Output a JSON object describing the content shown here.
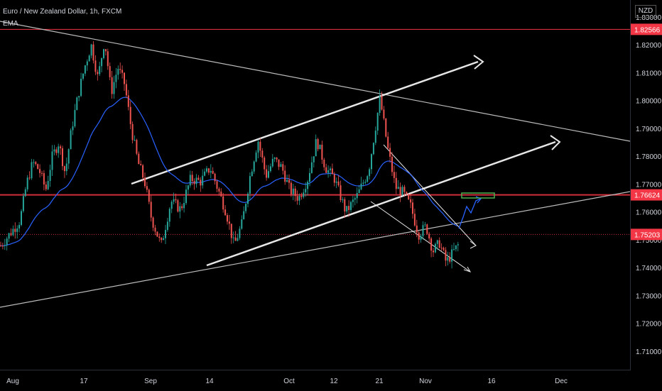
{
  "header": {
    "title": "Euro / New Zealand Dollar, 1h, FXCM",
    "indicator": "EMA"
  },
  "price_axis": {
    "currency": "NZD",
    "ticks": [
      "1.83000",
      "1.82000",
      "1.81000",
      "1.80000",
      "1.79000",
      "1.78000",
      "1.77000",
      "1.76000",
      "1.75000",
      "1.74000",
      "1.73000",
      "1.72000",
      "1.71000"
    ],
    "badges": [
      {
        "value": "1.82566",
        "color": "#f23645"
      },
      {
        "value": "1.76624",
        "color": "#f23645"
      },
      {
        "value": "1.75203",
        "color": "#f23645"
      }
    ]
  },
  "time_axis": {
    "labels": [
      "Aug",
      "17",
      "Sep",
      "14",
      "Oct",
      "12",
      "21",
      "Nov",
      "16",
      "Dec"
    ]
  },
  "colors": {
    "background": "#000000",
    "up": "#26a69a",
    "down": "#ef5350",
    "ema": "#2962ff",
    "resistance": "#f23645",
    "drawing": "#e6e6e6",
    "target_box": "#4caf50"
  },
  "chart_data": {
    "type": "candlestick",
    "symbol": "EURNZD",
    "interval": "1h",
    "source": "FXCM",
    "ylim": [
      1.7032,
      1.8362
    ],
    "grid": false,
    "horizontal_levels": [
      1.82566,
      1.76624
    ],
    "current_price": 1.75203,
    "price_path": [
      [
        "Aug",
        1.748
      ],
      [
        "",
        1.757
      ],
      [
        "",
        1.77
      ],
      [
        "",
        1.778
      ],
      [
        "",
        1.775
      ],
      [
        "",
        1.768
      ],
      [
        "",
        1.78
      ],
      [
        "",
        1.785
      ],
      [
        "",
        1.774
      ],
      [
        "",
        1.79
      ],
      [
        "",
        1.802
      ],
      [
        "17",
        1.812
      ],
      [
        "",
        1.82
      ],
      [
        "",
        1.808
      ],
      [
        "",
        1.822
      ],
      [
        "",
        1.803
      ],
      [
        "",
        1.812
      ],
      [
        "",
        1.806
      ],
      [
        "",
        1.79
      ],
      [
        "",
        1.778
      ],
      [
        "",
        1.771
      ],
      [
        "Sep",
        1.758
      ],
      [
        "",
        1.748
      ],
      [
        "",
        1.764
      ],
      [
        "",
        1.761
      ],
      [
        "",
        1.772
      ],
      [
        "",
        1.771
      ],
      [
        "14",
        1.776
      ],
      [
        "",
        1.768
      ],
      [
        "",
        1.76
      ],
      [
        "",
        1.748
      ],
      [
        "",
        1.756
      ],
      [
        "",
        1.773
      ],
      [
        "",
        1.786
      ],
      [
        "",
        1.773
      ],
      [
        "",
        1.779
      ],
      [
        "",
        1.776
      ],
      [
        "Oct",
        1.768
      ],
      [
        "",
        1.765
      ],
      [
        "",
        1.772
      ],
      [
        "",
        1.786
      ],
      [
        "",
        1.776
      ],
      [
        "12",
        1.772
      ],
      [
        "",
        1.76
      ],
      [
        "",
        1.766
      ],
      [
        "",
        1.775
      ],
      [
        "21",
        1.801
      ],
      [
        "",
        1.783
      ],
      [
        "",
        1.769
      ],
      [
        "",
        1.767
      ],
      [
        "",
        1.762
      ],
      [
        "",
        1.752
      ],
      [
        "Nov",
        1.755
      ],
      [
        "",
        1.746
      ],
      [
        "",
        1.749
      ],
      [
        "",
        1.742
      ],
      [
        "",
        1.749
      ]
    ]
  }
}
